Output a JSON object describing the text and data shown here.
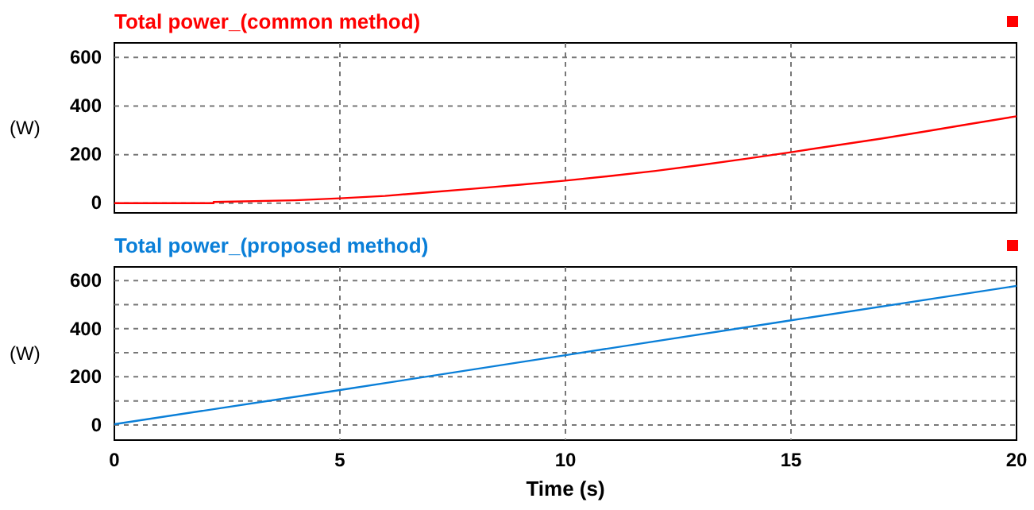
{
  "chart_data": [
    {
      "type": "line",
      "title": "Total power_(common method)",
      "ylabel": "(W)",
      "x": [
        0,
        2.2,
        2.2,
        4,
        5,
        6,
        7,
        8,
        9,
        10,
        11,
        12,
        13,
        14,
        15,
        16,
        17,
        18,
        19,
        20
      ],
      "series": [
        {
          "color": "#ff0000",
          "values": [
            0,
            0,
            5,
            12,
            20,
            30,
            45,
            60,
            76,
            93,
            112,
            133,
            157,
            183,
            210,
            238,
            266,
            296,
            327,
            358
          ]
        }
      ],
      "xlim": [
        0,
        20
      ],
      "xticks": [
        0,
        5,
        10,
        15,
        20
      ],
      "ylim": [
        -40,
        660
      ],
      "yticks": [
        0,
        200,
        400,
        600
      ],
      "grid": true,
      "tick_labels": "y"
    },
    {
      "type": "line",
      "title": "Total power_(proposed method)",
      "ylabel": "(W)",
      "xlabel": "Time (s)",
      "x": [
        0,
        5,
        10,
        15,
        20
      ],
      "series": [
        {
          "color": "#0a7fd8",
          "values": [
            3,
            145,
            290,
            435,
            578
          ]
        }
      ],
      "xlim": [
        0,
        20
      ],
      "xticks": [
        0,
        5,
        10,
        15,
        20
      ],
      "ylim": [
        -63,
        657
      ],
      "yticks": [
        0,
        {
          "value": 100,
          "label": null
        },
        200,
        {
          "value": 300,
          "label": null
        },
        400,
        {
          "value": 500,
          "label": null
        },
        600
      ],
      "grid": true
    }
  ]
}
